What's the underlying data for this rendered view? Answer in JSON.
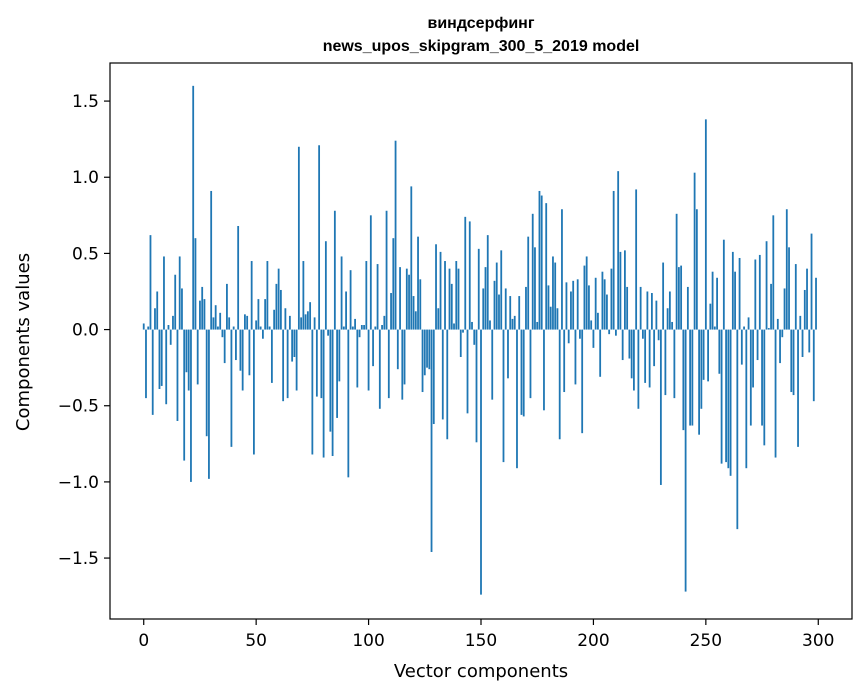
{
  "chart_data": {
    "type": "bar",
    "title_line1": "виндсерфинг",
    "title_line2": "news_upos_skipgram_300_5_2019 model",
    "xlabel": "Vector components",
    "ylabel": "Components values",
    "xlim": [
      -15,
      315
    ],
    "ylim": [
      -1.9,
      1.75
    ],
    "xticks": [
      0,
      50,
      100,
      150,
      200,
      250,
      300
    ],
    "xtick_labels": [
      "0",
      "50",
      "100",
      "150",
      "200",
      "250",
      "300"
    ],
    "yticks": [
      -1.5,
      -1.0,
      -0.5,
      0.0,
      0.5,
      1.0,
      1.5
    ],
    "ytick_labels": [
      "−1.5",
      "−1.0",
      "−0.5",
      "0.0",
      "0.5",
      "1.0",
      "1.5"
    ],
    "bar_color": "#1f77b4",
    "values": [
      0.04,
      -0.45,
      0.02,
      0.62,
      -0.56,
      0.14,
      0.25,
      -0.39,
      -0.37,
      0.48,
      -0.49,
      0.03,
      -0.1,
      0.09,
      0.36,
      -0.6,
      0.48,
      0.27,
      -0.86,
      -0.28,
      -0.4,
      -1.0,
      1.6,
      0.6,
      -0.36,
      0.19,
      0.28,
      0.2,
      -0.7,
      -0.98,
      0.91,
      0.08,
      0.16,
      0.02,
      0.11,
      -0.05,
      -0.22,
      0.3,
      0.08,
      -0.77,
      0.02,
      -0.2,
      0.68,
      -0.27,
      -0.4,
      0.1,
      0.09,
      -0.3,
      0.45,
      -0.82,
      0.06,
      0.2,
      0.02,
      -0.06,
      0.2,
      0.45,
      0.02,
      -0.35,
      0.13,
      0.3,
      0.4,
      0.26,
      -0.47,
      0.14,
      -0.45,
      0.09,
      -0.21,
      -0.18,
      -0.4,
      1.2,
      0.08,
      0.45,
      0.1,
      0.12,
      0.18,
      -0.82,
      0.08,
      -0.44,
      1.21,
      -0.45,
      -0.84,
      0.58,
      -0.04,
      -0.67,
      -0.83,
      0.78,
      -0.58,
      -0.34,
      0.48,
      0.02,
      0.25,
      -0.97,
      0.39,
      0.02,
      0.07,
      -0.38,
      -0.05,
      0.03,
      0.03,
      0.45,
      -0.4,
      0.75,
      -0.24,
      0.02,
      0.43,
      -0.52,
      0.03,
      0.09,
      0.78,
      -0.45,
      0.24,
      0.6,
      1.24,
      -0.26,
      0.41,
      -0.46,
      -0.36,
      0.4,
      0.36,
      0.94,
      0.22,
      0.12,
      0.61,
      0.33,
      -0.41,
      -0.3,
      -0.25,
      -0.26,
      -1.46,
      -0.62,
      0.56,
      0.14,
      0.51,
      -0.59,
      0.45,
      -0.72,
      0.4,
      0.3,
      0.04,
      0.45,
      0.4,
      -0.18,
      -0.02,
      0.74,
      -0.55,
      0.71,
      0.05,
      -0.1,
      -0.74,
      0.53,
      -1.74,
      0.27,
      0.41,
      0.62,
      0.06,
      -0.46,
      0.32,
      0.44,
      0.23,
      0.52,
      -0.87,
      0.27,
      -0.32,
      0.22,
      0.07,
      0.09,
      -0.91,
      0.22,
      -0.56,
      -0.57,
      0.28,
      0.61,
      -0.45,
      0.76,
      0.54,
      0.05,
      0.91,
      0.88,
      -0.53,
      0.83,
      0.29,
      0.15,
      0.48,
      0.44,
      0.14,
      -0.72,
      0.79,
      -0.41,
      0.31,
      -0.09,
      0.25,
      0.32,
      -0.36,
      0.33,
      -0.06,
      -0.68,
      0.42,
      0.48,
      0.29,
      0.06,
      -0.12,
      0.34,
      0.11,
      -0.31,
      0.38,
      0.33,
      0.23,
      -0.03,
      0.4,
      0.91,
      -0.04,
      1.04,
      0.51,
      -0.2,
      0.52,
      0.28,
      -0.19,
      -0.32,
      -0.4,
      0.92,
      -0.52,
      0.28,
      -0.06,
      -0.35,
      0.25,
      -0.38,
      0.24,
      -0.24,
      0.19,
      -0.07,
      -1.02,
      0.44,
      -0.43,
      0.14,
      0.25,
      0.05,
      -0.45,
      0.76,
      0.41,
      0.42,
      -0.66,
      -1.72,
      0.28,
      -0.63,
      -0.63,
      1.03,
      0.79,
      -0.69,
      -0.52,
      -0.33,
      1.38,
      -0.34,
      0.17,
      0.38,
      0.02,
      0.34,
      -0.29,
      -0.88,
      0.59,
      -0.87,
      -0.91,
      -0.96,
      0.51,
      0.38,
      -1.31,
      0.47,
      -0.23,
      0.02,
      -0.91,
      0.08,
      -0.63,
      -0.38,
      0.46,
      -0.2,
      0.49,
      -0.63,
      -0.76,
      0.58,
      0.01,
      0.3,
      0.75,
      -0.84,
      0.07,
      -0.22,
      -0.05,
      0.27,
      0.79,
      0.54,
      -0.41,
      -0.43,
      0.43,
      -0.77,
      0.09,
      -0.18,
      0.26,
      0.4,
      -0.15,
      0.63,
      -0.47,
      0.34
    ]
  }
}
